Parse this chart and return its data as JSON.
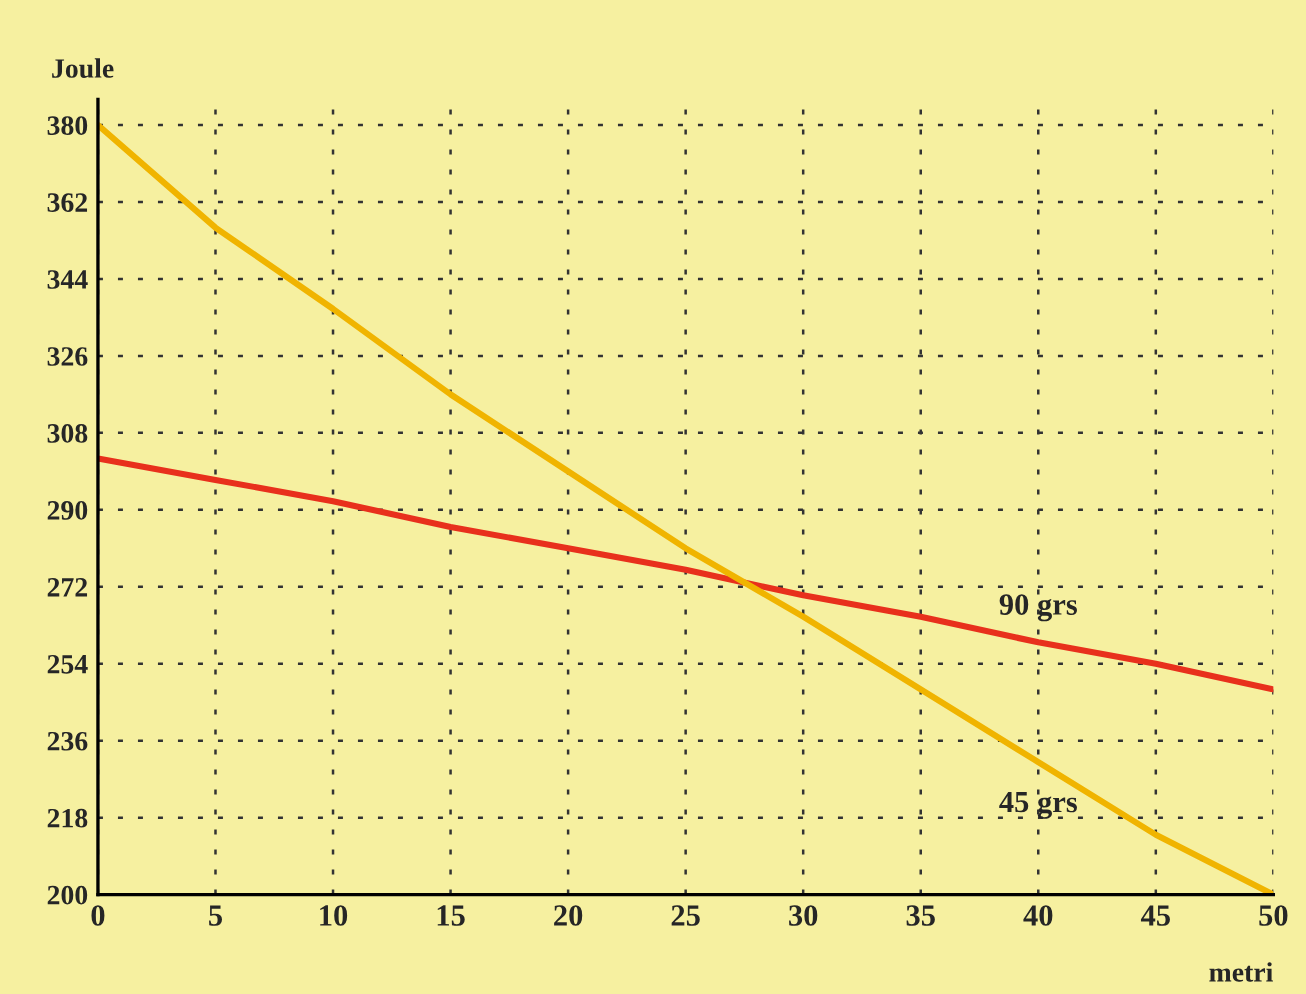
{
  "chart_data": {
    "type": "line",
    "xlabel": "metri",
    "ylabel": "Joule",
    "x": [
      0,
      5,
      10,
      15,
      20,
      25,
      30,
      35,
      40,
      45,
      50
    ],
    "series": [
      {
        "name": "90 grs",
        "color": "#e8301c",
        "values": [
          302,
          297,
          292,
          286,
          281,
          276,
          270,
          265,
          259,
          254,
          248
        ]
      },
      {
        "name": "45 grs",
        "color": "#f0b400",
        "values": [
          380,
          356,
          337,
          317,
          299,
          281,
          265,
          248,
          231,
          214,
          200
        ]
      }
    ],
    "xlim": [
      0,
      50
    ],
    "xticks": [
      0,
      5,
      10,
      15,
      20,
      25,
      30,
      35,
      40,
      45,
      50
    ],
    "ylim": [
      200,
      386
    ],
    "yticks": [
      200,
      218,
      236,
      254,
      272,
      290,
      308,
      326,
      344,
      362,
      380
    ],
    "grid": true,
    "legend": false,
    "marker": "none",
    "line_style": "solid"
  }
}
